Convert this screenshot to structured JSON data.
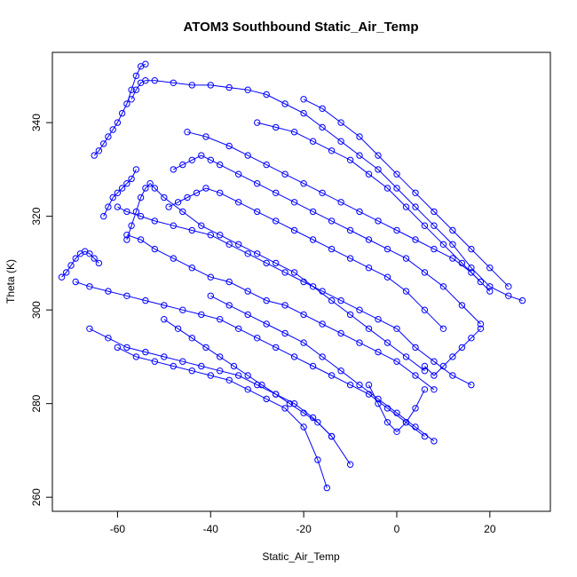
{
  "chart_data": {
    "type": "scatter",
    "title": "ATOM3 Southbound Static_Air_Temp",
    "xlabel": "Static_Air_Temp",
    "ylabel": "Theta (K)",
    "xlim": [
      -74,
      33
    ],
    "ylim": [
      257,
      355
    ],
    "x_ticks": [
      -60,
      -40,
      -20,
      0,
      20
    ],
    "x_tick_labels": [
      "-60",
      "-40",
      "-20",
      "0",
      "20"
    ],
    "y_ticks": [
      260,
      280,
      300,
      320,
      340
    ],
    "y_tick_labels": [
      "260",
      "280",
      "300",
      "320",
      "340"
    ],
    "marker": "open-circle",
    "connected": true,
    "series_color": "#0000ff",
    "series": [
      {
        "x": [
          -72,
          -71,
          -70,
          -69,
          -68,
          -67,
          -66,
          -65,
          -64
        ],
        "y": [
          307,
          308,
          309.5,
          311,
          312,
          312.5,
          312,
          311,
          310
        ]
      },
      {
        "x": [
          -65,
          -64,
          -63,
          -62,
          -61,
          -60,
          -59,
          -58,
          -57,
          -56,
          -55,
          -54
        ],
        "y": [
          333,
          334,
          335.5,
          337,
          338.5,
          340,
          342,
          344,
          347,
          350,
          352,
          352.5
        ]
      },
      {
        "x": [
          -57,
          -56,
          -55,
          -54,
          -52,
          -48,
          -44,
          -40,
          -36,
          -32,
          -28,
          -24,
          -20,
          -16,
          -12,
          -8,
          -4,
          0,
          4,
          8,
          12,
          16,
          20,
          24,
          27
        ],
        "y": [
          345,
          347,
          348.5,
          349,
          349,
          348.5,
          348,
          348,
          347.5,
          347,
          346,
          344,
          342,
          339,
          336,
          333,
          330,
          326,
          322,
          318,
          314,
          309,
          305,
          303,
          302
        ]
      },
      {
        "x": [
          -45,
          -41,
          -36,
          -32,
          -28,
          -24,
          -20,
          -16,
          -12,
          -8,
          -4,
          0,
          4,
          8,
          12,
          16,
          20
        ],
        "y": [
          338,
          337,
          335,
          333,
          331,
          329,
          327,
          325,
          323,
          321,
          319,
          317,
          315,
          313,
          311,
          308,
          304
        ]
      },
      {
        "x": [
          -60,
          -58,
          -55,
          -52,
          -48,
          -44,
          -40,
          -36,
          -32,
          -28,
          -24,
          -20,
          -16,
          -12,
          -8,
          -4,
          0,
          4,
          8,
          12,
          16
        ],
        "y": [
          322,
          321,
          320,
          319,
          318,
          317,
          316,
          314,
          312,
          310,
          308,
          306,
          304,
          302,
          300,
          298,
          296,
          292,
          289,
          286,
          284
        ]
      },
      {
        "x": [
          -58,
          -55,
          -52,
          -48,
          -44,
          -40,
          -36,
          -32,
          -28,
          -24,
          -20,
          -16,
          -12,
          -8,
          -4,
          0,
          4,
          8
        ],
        "y": [
          316,
          315,
          313,
          311,
          309,
          307,
          306,
          304,
          302,
          301,
          299,
          297,
          295,
          293,
          291,
          289,
          286,
          283
        ]
      },
      {
        "x": [
          -69,
          -66,
          -62,
          -58,
          -54,
          -50,
          -46,
          -42,
          -38,
          -34,
          -30,
          -26,
          -22,
          -18,
          -14,
          -10,
          -6,
          -2,
          2,
          6
        ],
        "y": [
          306,
          305,
          304,
          303,
          302,
          301,
          300,
          299,
          298,
          296,
          294,
          292,
          290,
          288,
          286,
          284,
          282,
          279,
          276,
          273
        ]
      },
      {
        "x": [
          -66,
          -62,
          -58,
          -54,
          -50,
          -46,
          -42,
          -38,
          -34,
          -30,
          -26,
          -22,
          -18,
          -14,
          -10
        ],
        "y": [
          296,
          294,
          292,
          291,
          290,
          289,
          288,
          287,
          286,
          284,
          282,
          280,
          277,
          273,
          267
        ]
      },
      {
        "x": [
          -60,
          -56,
          -52,
          -48,
          -44,
          -40,
          -36,
          -32,
          -28,
          -24,
          -20,
          -17,
          -15
        ],
        "y": [
          292,
          290,
          289,
          288,
          287,
          286,
          285,
          283,
          281,
          279,
          275,
          268,
          262
        ]
      },
      {
        "x": [
          -48,
          -46,
          -44,
          -42,
          -40,
          -38,
          -34,
          -30,
          -26,
          -22,
          -18,
          -14,
          -10,
          -6,
          -2,
          2,
          6,
          10,
          14,
          18
        ],
        "y": [
          330,
          331,
          332,
          333,
          332,
          331,
          329,
          327,
          325,
          323,
          321,
          319,
          317,
          315,
          313,
          311,
          308,
          305,
          301,
          297
        ]
      },
      {
        "x": [
          -49,
          -47,
          -45,
          -43,
          -41,
          -38,
          -34,
          -30,
          -26,
          -22,
          -18,
          -14,
          -10,
          -6,
          -2,
          2,
          6,
          10
        ],
        "y": [
          322,
          323,
          324,
          325,
          326,
          325,
          323,
          321,
          319,
          317,
          315,
          313,
          311,
          309,
          307,
          304,
          300,
          296
        ]
      },
      {
        "x": [
          -58,
          -57,
          -56,
          -55,
          -54,
          -53,
          -52,
          -50,
          -46,
          -42,
          -38,
          -34,
          -30,
          -26,
          -22,
          -18,
          -14,
          -10,
          -6,
          -2,
          2,
          6
        ],
        "y": [
          315,
          318,
          321,
          324,
          326,
          327,
          326,
          324,
          321,
          318,
          316,
          314,
          312,
          310,
          308,
          305,
          302,
          299,
          296,
          293,
          290,
          287
        ]
      },
      {
        "x": [
          -63,
          -62,
          -61,
          -60,
          -59,
          -58,
          -57,
          -56
        ],
        "y": [
          320,
          322,
          324,
          325,
          326,
          327,
          328,
          330
        ]
      },
      {
        "x": [
          -30,
          -26,
          -22,
          -18,
          -14,
          -10,
          -6,
          -2,
          2,
          6,
          10,
          14,
          18
        ],
        "y": [
          340,
          339,
          338,
          336,
          334,
          332,
          329,
          326,
          322,
          318,
          314,
          310,
          306
        ]
      },
      {
        "x": [
          -20,
          -16,
          -12,
          -8,
          -4,
          0,
          4,
          8,
          12,
          16,
          20,
          24
        ],
        "y": [
          345,
          343,
          340,
          337,
          333,
          329,
          325,
          321,
          317,
          313,
          309,
          305
        ]
      },
      {
        "x": [
          -40,
          -36,
          -32,
          -28,
          -24,
          -20,
          -16,
          -12,
          -8,
          -4,
          0,
          4,
          8
        ],
        "y": [
          303,
          301,
          299,
          297,
          295,
          293,
          290,
          287,
          284,
          281,
          278,
          275,
          272
        ]
      },
      {
        "x": [
          -50,
          -47,
          -44,
          -41,
          -38,
          -35,
          -32,
          -29,
          -26,
          -23,
          -20,
          -17,
          -14
        ],
        "y": [
          298,
          296,
          294,
          292,
          290,
          288,
          286,
          284,
          282,
          280,
          278,
          276,
          273
        ]
      },
      {
        "x": [
          6,
          8,
          10,
          12,
          14,
          16,
          18
        ],
        "y": [
          288,
          286,
          288,
          290,
          292,
          294,
          296
        ]
      },
      {
        "x": [
          -6,
          -4,
          -2,
          0,
          2,
          4,
          6
        ],
        "y": [
          284,
          280,
          276,
          274,
          276,
          279,
          283
        ]
      }
    ]
  }
}
